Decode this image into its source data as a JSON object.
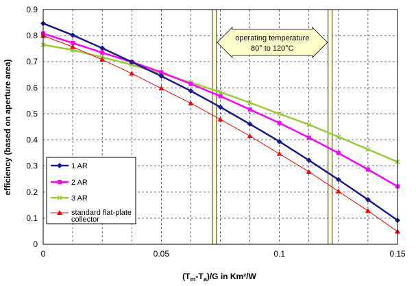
{
  "chart_data": {
    "type": "line",
    "title": "",
    "xlabel": "(Tm-Ta)/G   in Km²/W",
    "ylabel": "efficiency (based on aperture area)",
    "xlim": [
      0,
      0.15
    ],
    "ylim": [
      0,
      0.9
    ],
    "x_ticks": [
      "0",
      "0.05",
      "0.1",
      "0.15"
    ],
    "y_ticks": [
      "0",
      "0.1",
      "0.2",
      "0.3",
      "0.4",
      "0.5",
      "0.6",
      "0.7",
      "0.8",
      "0.9"
    ],
    "grid": "dashed vertical and horizontal",
    "legend_position": "lower-left",
    "x": [
      0,
      0.0125,
      0.025,
      0.0375,
      0.05,
      0.0625,
      0.075,
      0.0875,
      0.1,
      0.1125,
      0.125,
      0.1375,
      0.15
    ],
    "series": [
      {
        "name": "1 AR",
        "color": "#1a1a8c",
        "marker": "diamond",
        "values": [
          0.847,
          0.802,
          0.752,
          0.699,
          0.645,
          0.588,
          0.526,
          0.461,
          0.394,
          0.322,
          0.248,
          0.171,
          0.092
        ]
      },
      {
        "name": "2 AR",
        "color": "#ff00ff",
        "marker": "square",
        "values": [
          0.808,
          0.772,
          0.735,
          0.699,
          0.66,
          0.615,
          0.568,
          0.517,
          0.465,
          0.409,
          0.35,
          0.287,
          0.222
        ]
      },
      {
        "name": "3 AR",
        "color": "#99cc33",
        "marker": "x",
        "values": [
          0.765,
          0.745,
          0.717,
          0.688,
          0.655,
          0.62,
          0.584,
          0.543,
          0.5,
          0.459,
          0.412,
          0.364,
          0.316
        ]
      },
      {
        "name": "standard flat-plate collector",
        "color": "#ff0000",
        "marker": "triangle",
        "values": [
          0.8,
          0.757,
          0.708,
          0.655,
          0.598,
          0.541,
          0.479,
          0.415,
          0.347,
          0.278,
          0.203,
          0.128,
          0.049
        ]
      }
    ],
    "annotation": {
      "line1": "operating temperature",
      "line2": "80° to 120°C",
      "x_range": [
        0.0725,
        0.1215
      ]
    }
  },
  "axis_titles": {
    "x_prefix": "(T",
    "x_sub1": "m",
    "x_mid": "-T",
    "x_sub2": "a",
    "x_suffix": ")/G   in Km²/W"
  },
  "legend": {
    "item1": "1 AR",
    "item2": "2 AR",
    "item3": "3 AR",
    "item4_line1": "standard flat-plate",
    "item4_line2": "collector"
  }
}
